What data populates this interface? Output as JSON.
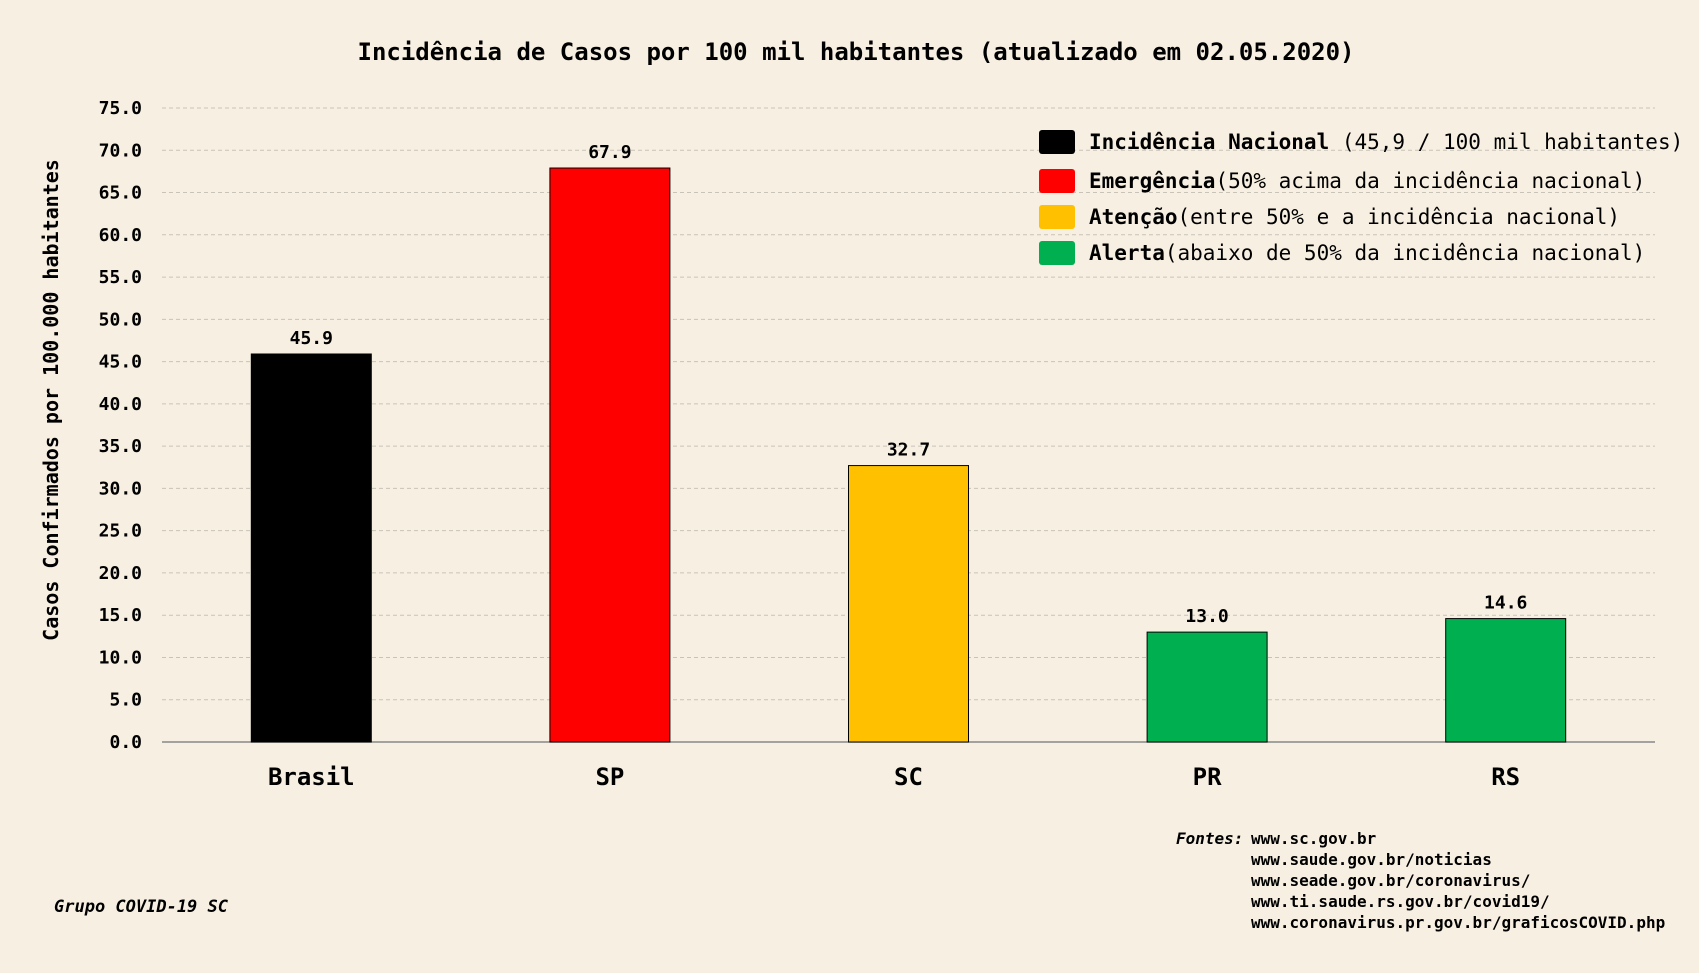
{
  "chart_data": {
    "type": "bar",
    "title": "Incidência de Casos por 100 mil habitantes (atualizado em 02.05.2020)",
    "xlabel": "",
    "ylabel": "Casos Confirmados por 100.000 habitantes",
    "categories": [
      "Brasil",
      "SP",
      "SC",
      "PR",
      "RS"
    ],
    "values": [
      45.9,
      67.9,
      32.7,
      13.0,
      14.6
    ],
    "value_labels": [
      "45.9",
      "67.9",
      "32.7",
      "13.0",
      "14.6"
    ],
    "bar_colors": [
      "#000000",
      "#ff0000",
      "#ffc000",
      "#00b050",
      "#00b050"
    ],
    "ylim": [
      0,
      75
    ],
    "yticks": [
      "0.0",
      "5.0",
      "10.0",
      "15.0",
      "20.0",
      "25.0",
      "30.0",
      "35.0",
      "40.0",
      "45.0",
      "50.0",
      "55.0",
      "60.0",
      "65.0",
      "70.0",
      "75.0"
    ],
    "grid": true,
    "legend_position": "top-right",
    "legend": [
      {
        "title": "Incidência Nacional",
        "desc": " (45,9 / 100 mil habitantes)",
        "color": "#000000"
      },
      {
        "title": "Emergência",
        "desc": "(50% acima da incidência nacional)",
        "color": "#ff0000"
      },
      {
        "title": "Atenção",
        "desc": "(entre 50% e a incidência nacional)",
        "color": "#ffc000"
      },
      {
        "title": "Alerta",
        "desc": "(abaixo de 50% da incidência nacional)",
        "color": "#00b050"
      }
    ]
  },
  "footer": {
    "group": "Grupo COVID-19 SC",
    "sources_label": "Fontes:",
    "sources": [
      "www.sc.gov.br",
      "www.saude.gov.br/noticias",
      "www.seade.gov.br/coronavirus/",
      "www.ti.saude.rs.gov.br/covid19/",
      "www.coronavirus.pr.gov.br/graficosCOVID.php"
    ]
  },
  "colors": {
    "background": "#f7f0e2",
    "grid": "#c8c3b8",
    "axis": "#888888"
  }
}
